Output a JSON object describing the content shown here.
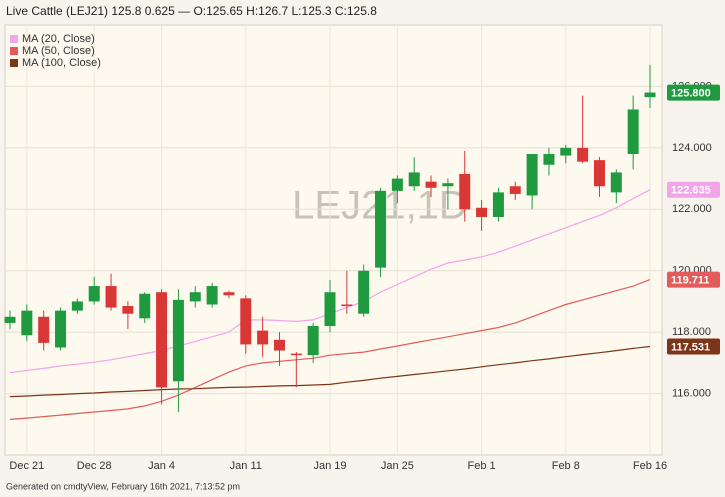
{
  "chart_data": {
    "type": "candlestick",
    "title": "Live Cattle (LEJ21) 125.8 0.625 — O:125.65 H:126.7 L:125.3 C:125.8",
    "watermark": "LEJ21,1D",
    "footer": "Generated on cmdtyView, February 16th 2021, 7:13:52 pm",
    "categories": [
      null,
      "Dec 21",
      null,
      null,
      null,
      "Dec 28",
      null,
      null,
      null,
      "Jan 4",
      null,
      null,
      null,
      null,
      "Jan 11",
      null,
      null,
      null,
      null,
      "Jan 19",
      null,
      null,
      null,
      "Jan 25",
      null,
      null,
      null,
      null,
      "Feb 1",
      null,
      null,
      null,
      null,
      "Feb 8",
      null,
      null,
      null,
      null,
      "Feb 16"
    ],
    "open": [
      118.3,
      117.9,
      118.5,
      117.5,
      118.7,
      119.0,
      119.5,
      118.85,
      118.45,
      119.3,
      116.4,
      119.0,
      118.9,
      119.3,
      119.1,
      118.05,
      117.75,
      117.3,
      117.25,
      118.2,
      118.9,
      118.6,
      120.1,
      122.6,
      122.75,
      122.9,
      122.75,
      123.15,
      122.05,
      121.75,
      122.75,
      122.45,
      123.45,
      123.75,
      124.0,
      123.6,
      122.55,
      123.8,
      125.65
    ],
    "high": [
      118.7,
      118.9,
      118.7,
      118.8,
      119.1,
      119.8,
      119.9,
      119.0,
      119.3,
      119.4,
      119.4,
      119.5,
      119.6,
      119.35,
      119.2,
      118.5,
      118.0,
      117.35,
      118.3,
      119.7,
      120.0,
      120.2,
      122.7,
      123.1,
      123.7,
      123.1,
      123.0,
      123.9,
      122.3,
      122.7,
      122.9,
      123.8,
      124.0,
      124.1,
      125.7,
      123.7,
      123.3,
      125.7,
      126.7
    ],
    "low": [
      118.1,
      117.7,
      117.4,
      117.4,
      118.6,
      118.9,
      118.7,
      118.1,
      118.3,
      115.65,
      115.4,
      118.8,
      118.8,
      119.1,
      117.3,
      117.2,
      116.9,
      116.2,
      117.0,
      118.0,
      118.6,
      118.5,
      119.8,
      122.2,
      122.6,
      122.4,
      122.0,
      121.6,
      121.3,
      121.6,
      122.3,
      122.0,
      123.1,
      123.5,
      123.5,
      122.4,
      122.2,
      123.3,
      125.3
    ],
    "close": [
      118.5,
      118.7,
      117.65,
      118.7,
      119.0,
      119.5,
      118.8,
      118.6,
      119.25,
      116.2,
      119.05,
      119.3,
      119.5,
      119.2,
      117.6,
      117.6,
      117.4,
      117.25,
      118.2,
      119.3,
      118.85,
      120.0,
      122.6,
      123.0,
      123.2,
      122.7,
      122.85,
      122.0,
      121.75,
      122.55,
      122.5,
      123.8,
      123.8,
      124.0,
      123.55,
      122.75,
      123.2,
      125.25,
      125.8
    ],
    "close_last_label": "125.800",
    "up_color": "#1f9a3f",
    "down_color": "#d93636",
    "series": [
      {
        "name": "MA (20, Close)",
        "color": "#f2a5e8",
        "last_label": "122.635",
        "values": [
          116.68,
          116.75,
          116.82,
          116.9,
          116.96,
          117.02,
          117.1,
          117.2,
          117.3,
          117.4,
          117.55,
          117.7,
          117.85,
          118.0,
          118.4,
          118.4,
          118.38,
          118.35,
          118.4,
          118.6,
          118.8,
          119.0,
          119.3,
          119.55,
          119.8,
          120.05,
          120.25,
          120.35,
          120.45,
          120.6,
          120.8,
          121.0,
          121.2,
          121.4,
          121.6,
          121.8,
          122.05,
          122.35,
          122.635
        ]
      },
      {
        "name": "MA (50, Close)",
        "color": "#e35b5b",
        "last_label": "119.711",
        "values": [
          115.16,
          115.2,
          115.25,
          115.3,
          115.35,
          115.4,
          115.45,
          115.5,
          115.6,
          115.75,
          115.95,
          116.2,
          116.45,
          116.7,
          116.9,
          117.0,
          117.05,
          117.1,
          117.15,
          117.25,
          117.3,
          117.35,
          117.45,
          117.55,
          117.65,
          117.75,
          117.85,
          117.95,
          118.05,
          118.15,
          118.3,
          118.5,
          118.7,
          118.9,
          119.05,
          119.2,
          119.35,
          119.5,
          119.711
        ]
      },
      {
        "name": "MA (100, Close)",
        "color": "#7d3519",
        "last_label": "117.531",
        "values": [
          115.9,
          115.92,
          115.95,
          115.97,
          116.0,
          116.02,
          116.05,
          116.07,
          116.1,
          116.13,
          116.15,
          116.16,
          116.18,
          116.2,
          116.21,
          116.23,
          116.25,
          116.26,
          116.28,
          116.3,
          116.37,
          116.43,
          116.5,
          116.56,
          116.62,
          116.68,
          116.74,
          116.8,
          116.87,
          116.94,
          117.0,
          117.07,
          117.13,
          117.2,
          117.27,
          117.33,
          117.4,
          117.47,
          117.531
        ]
      }
    ],
    "ylim": [
      114,
      128
    ],
    "yticks": [
      {
        "value": 116,
        "label": "116.000"
      },
      {
        "value": 118,
        "label": "118.000"
      },
      {
        "value": 120,
        "label": "120.000"
      },
      {
        "value": 122,
        "label": "122.000"
      },
      {
        "value": 124,
        "label": "124.000"
      },
      {
        "value": 126,
        "label": "126.000"
      }
    ],
    "grid": true,
    "legend": "top-left"
  }
}
